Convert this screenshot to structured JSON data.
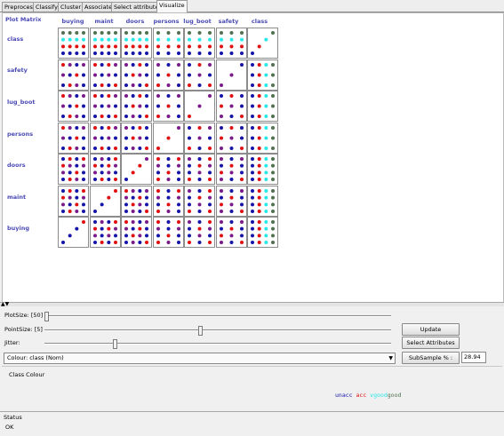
{
  "tabs": [
    "Preprocess",
    "Classify",
    "Cluster",
    "Associate",
    "Select attributes",
    "Visualize"
  ],
  "active_tab": "Visualize",
  "matrix": {
    "title": "Plot Matrix",
    "columns": [
      "buying",
      "maint",
      "doors",
      "persons",
      "lug_boot",
      "safety",
      "class"
    ],
    "rows": [
      "class",
      "safety",
      "lug_boot",
      "persons",
      "doors",
      "maint",
      "buying"
    ]
  },
  "controls": {
    "plot_size_label": "PlotSize: [50]",
    "point_size_label": "PointSize: [5]",
    "jitter_label": "Jitter:",
    "plot_size_value": 0.0,
    "point_size_value": 0.45,
    "jitter_value": 0.2,
    "update_label": "Update",
    "select_attributes_label": "Select Attributes",
    "colour_select": "Colour: class (Nom)",
    "subsample_label": "SubSample % :",
    "subsample_value": "28.94"
  },
  "class_colour": {
    "title": "Class Colour",
    "entries": [
      {
        "label": "unacc",
        "color": "#1414a8"
      },
      {
        "label": "acc",
        "color": "#e01010"
      },
      {
        "label": "vgood",
        "color": "#28e8e8"
      },
      {
        "label": "good",
        "color": "#507050"
      }
    ]
  },
  "status": {
    "title": "Status",
    "text": "OK"
  }
}
